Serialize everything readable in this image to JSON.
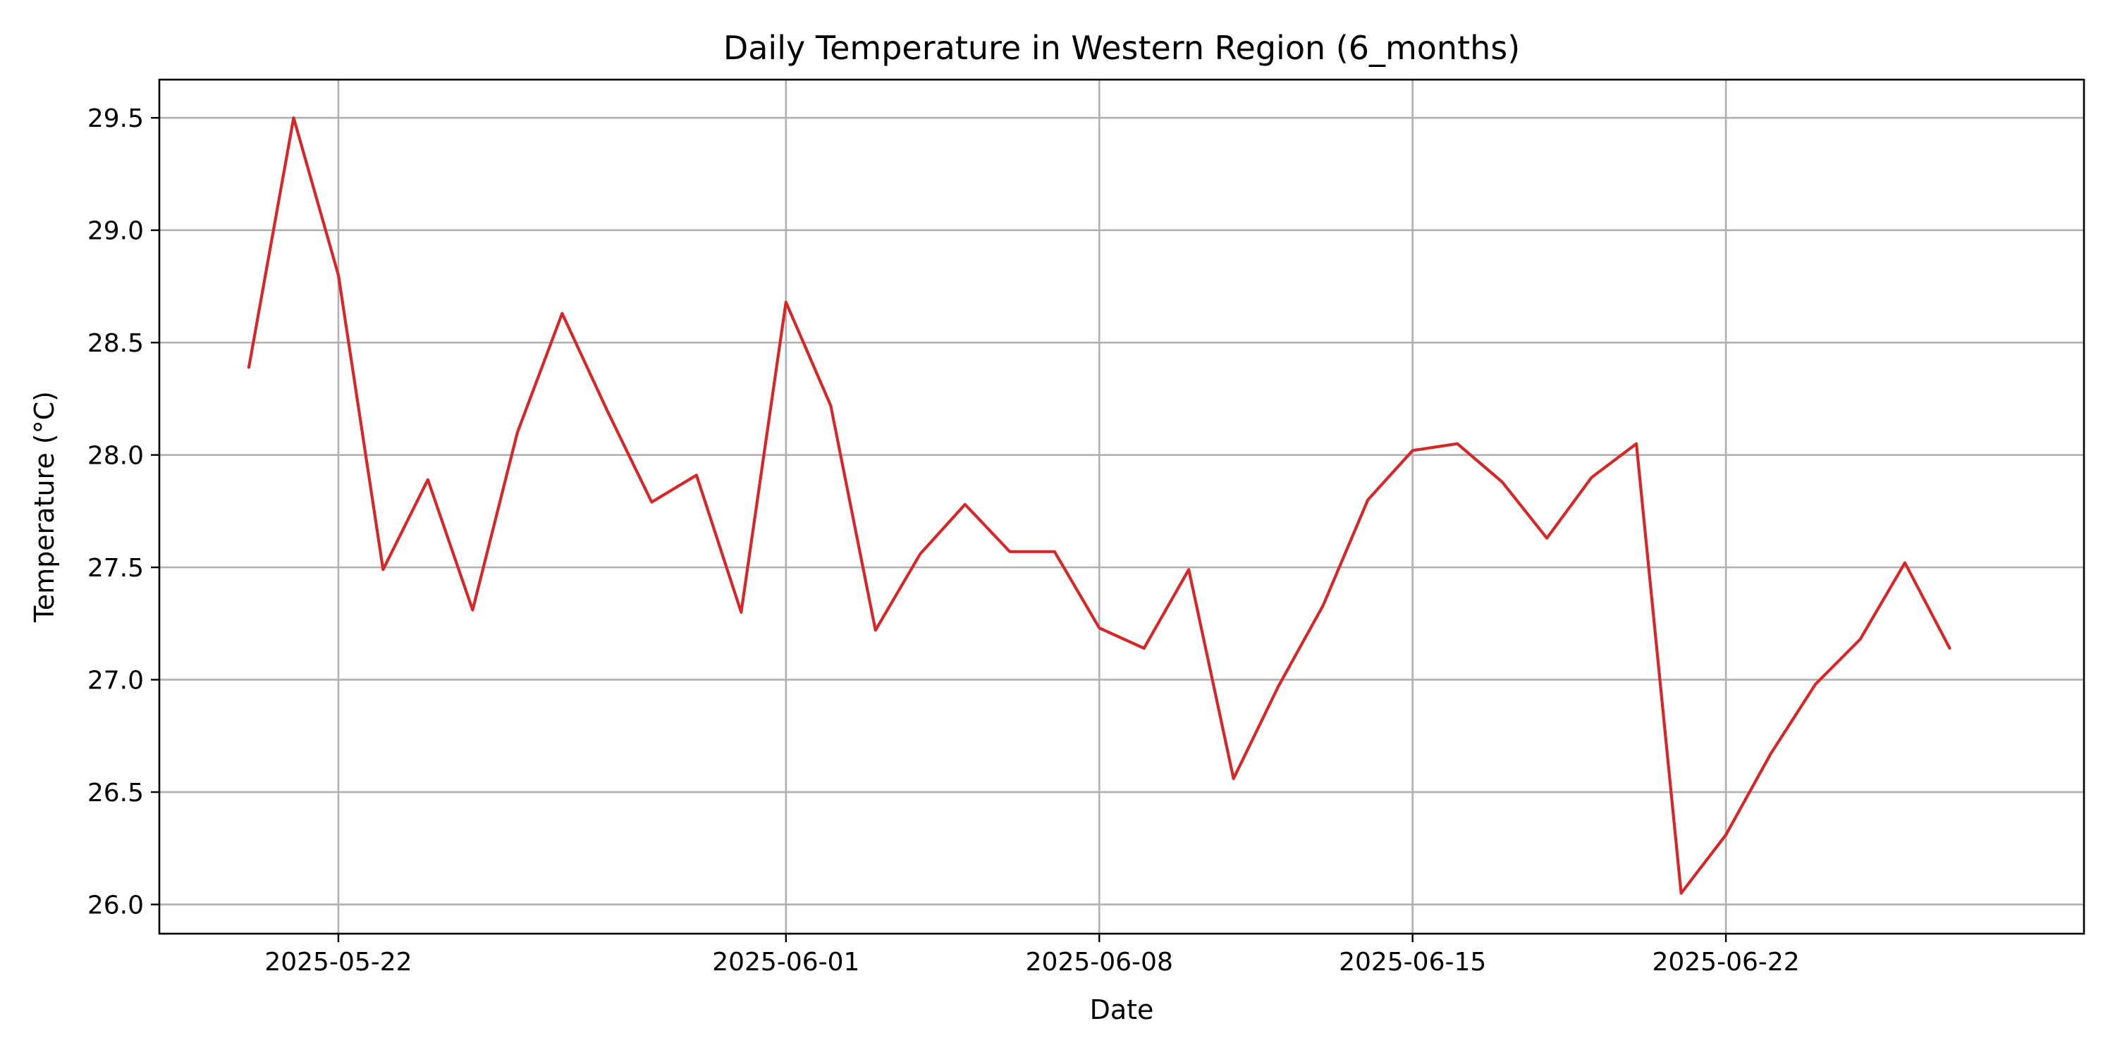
{
  "chart_data": {
    "type": "line",
    "title": "Daily Temperature in Western Region (6_months)",
    "xlabel": "Date",
    "ylabel": "Temperature (°C)",
    "grid": true,
    "line_color": "#d62728",
    "x_tick_labels": [
      "2025-05-22",
      "2025-06-01",
      "2025-06-08",
      "2025-06-15",
      "2025-06-22"
    ],
    "y_tick_labels": [
      "26.0",
      "26.5",
      "27.0",
      "27.5",
      "28.0",
      "28.5",
      "29.0",
      "29.5"
    ],
    "ylim": [
      25.87,
      29.67
    ],
    "xlim": [
      "2025-05-18",
      "2025-06-30"
    ],
    "series": [
      {
        "x": [
          "2025-05-20",
          "2025-05-21",
          "2025-05-22",
          "2025-05-23",
          "2025-05-24",
          "2025-05-25",
          "2025-05-26",
          "2025-05-27",
          "2025-05-28",
          "2025-05-29",
          "2025-05-30",
          "2025-05-31",
          "2025-06-01",
          "2025-06-02",
          "2025-06-03",
          "2025-06-04",
          "2025-06-05",
          "2025-06-06",
          "2025-06-07",
          "2025-06-08",
          "2025-06-09",
          "2025-06-10",
          "2025-06-11",
          "2025-06-12",
          "2025-06-13",
          "2025-06-14",
          "2025-06-15",
          "2025-06-16",
          "2025-06-17",
          "2025-06-18",
          "2025-06-19",
          "2025-06-20",
          "2025-06-21",
          "2025-06-22",
          "2025-06-23",
          "2025-06-24",
          "2025-06-25",
          "2025-06-26",
          "2025-06-27"
        ],
        "values": [
          28.39,
          29.5,
          28.8,
          27.49,
          27.89,
          27.31,
          28.1,
          28.63,
          28.2,
          27.79,
          27.91,
          27.3,
          28.68,
          28.22,
          27.22,
          27.56,
          27.78,
          27.57,
          27.57,
          27.23,
          27.14,
          27.49,
          26.56,
          26.97,
          27.33,
          27.8,
          28.02,
          28.05,
          27.88,
          27.63,
          27.9,
          28.05,
          26.05,
          26.31,
          26.67,
          26.98,
          27.18,
          27.52,
          27.14
        ]
      }
    ]
  }
}
